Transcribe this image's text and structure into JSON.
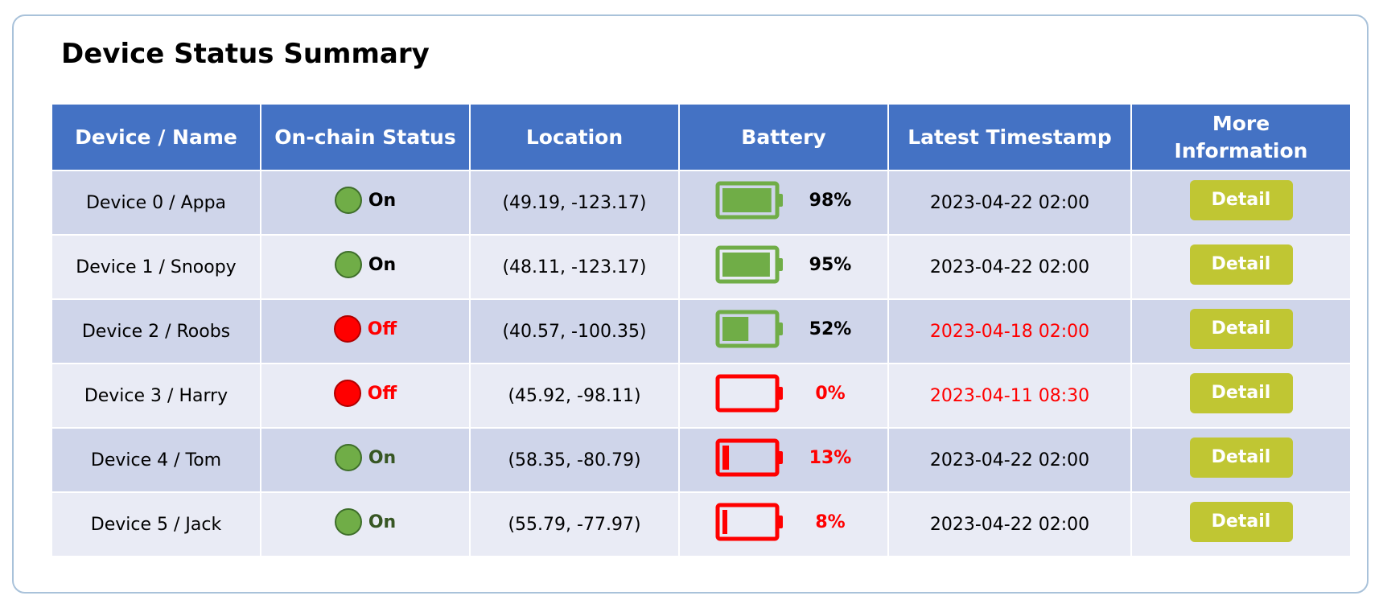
{
  "title": "Device Status Summary",
  "columns": [
    "Device / Name",
    "On-chain Status",
    "Location",
    "Battery",
    "Latest Timestamp",
    "More\nInformation"
  ],
  "colors": {
    "header_bg": "#4472c4",
    "row_dark": "#cfd5ea",
    "row_light": "#e9ebf5",
    "on_green": "#70ad47",
    "on_text_dark_green": "#375623",
    "off_red": "#ff0000",
    "button": "#c0c633"
  },
  "rows": [
    {
      "device": "Device 0 / Appa",
      "status": "On",
      "status_state": "on",
      "status_color": "#000000",
      "location": "(49.19, -123.17)",
      "battery_level": 98,
      "battery_label": "98%",
      "battery_color": "#70ad47",
      "battery_text_color": "#000000",
      "timestamp": "2023-04-22 02:00",
      "timestamp_color": "#000000",
      "action": "Detail"
    },
    {
      "device": "Device 1 / Snoopy",
      "status": "On",
      "status_state": "on",
      "status_color": "#000000",
      "location": "(48.11, -123.17)",
      "battery_level": 95,
      "battery_label": "95%",
      "battery_color": "#70ad47",
      "battery_text_color": "#000000",
      "timestamp": "2023-04-22 02:00",
      "timestamp_color": "#000000",
      "action": "Detail"
    },
    {
      "device": "Device 2 / Roobs",
      "status": "Off",
      "status_state": "off",
      "status_color": "#ff0000",
      "location": "(40.57, -100.35)",
      "battery_level": 52,
      "battery_label": "52%",
      "battery_color": "#70ad47",
      "battery_text_color": "#000000",
      "timestamp": "2023-04-18 02:00",
      "timestamp_color": "#ff0000",
      "action": "Detail"
    },
    {
      "device": "Device 3 / Harry",
      "status": "Off",
      "status_state": "off",
      "status_color": "#ff0000",
      "location": "(45.92, -98.11)",
      "battery_level": 0,
      "battery_label": "0%",
      "battery_color": "#ff0000",
      "battery_text_color": "#ff0000",
      "timestamp": "2023-04-11 08:30",
      "timestamp_color": "#ff0000",
      "action": "Detail"
    },
    {
      "device": "Device 4 / Tom",
      "status": "On",
      "status_state": "on",
      "status_color": "#375623",
      "location": "(58.35, -80.79)",
      "battery_level": 13,
      "battery_label": "13%",
      "battery_color": "#ff0000",
      "battery_text_color": "#ff0000",
      "timestamp": "2023-04-22 02:00",
      "timestamp_color": "#000000",
      "action": "Detail"
    },
    {
      "device": "Device 5 / Jack",
      "status": "On",
      "status_state": "on",
      "status_color": "#375623",
      "location": "(55.79, -77.97)",
      "battery_level": 8,
      "battery_label": "8%",
      "battery_color": "#ff0000",
      "battery_text_color": "#ff0000",
      "timestamp": "2023-04-22 02:00",
      "timestamp_color": "#000000",
      "action": "Detail"
    }
  ]
}
